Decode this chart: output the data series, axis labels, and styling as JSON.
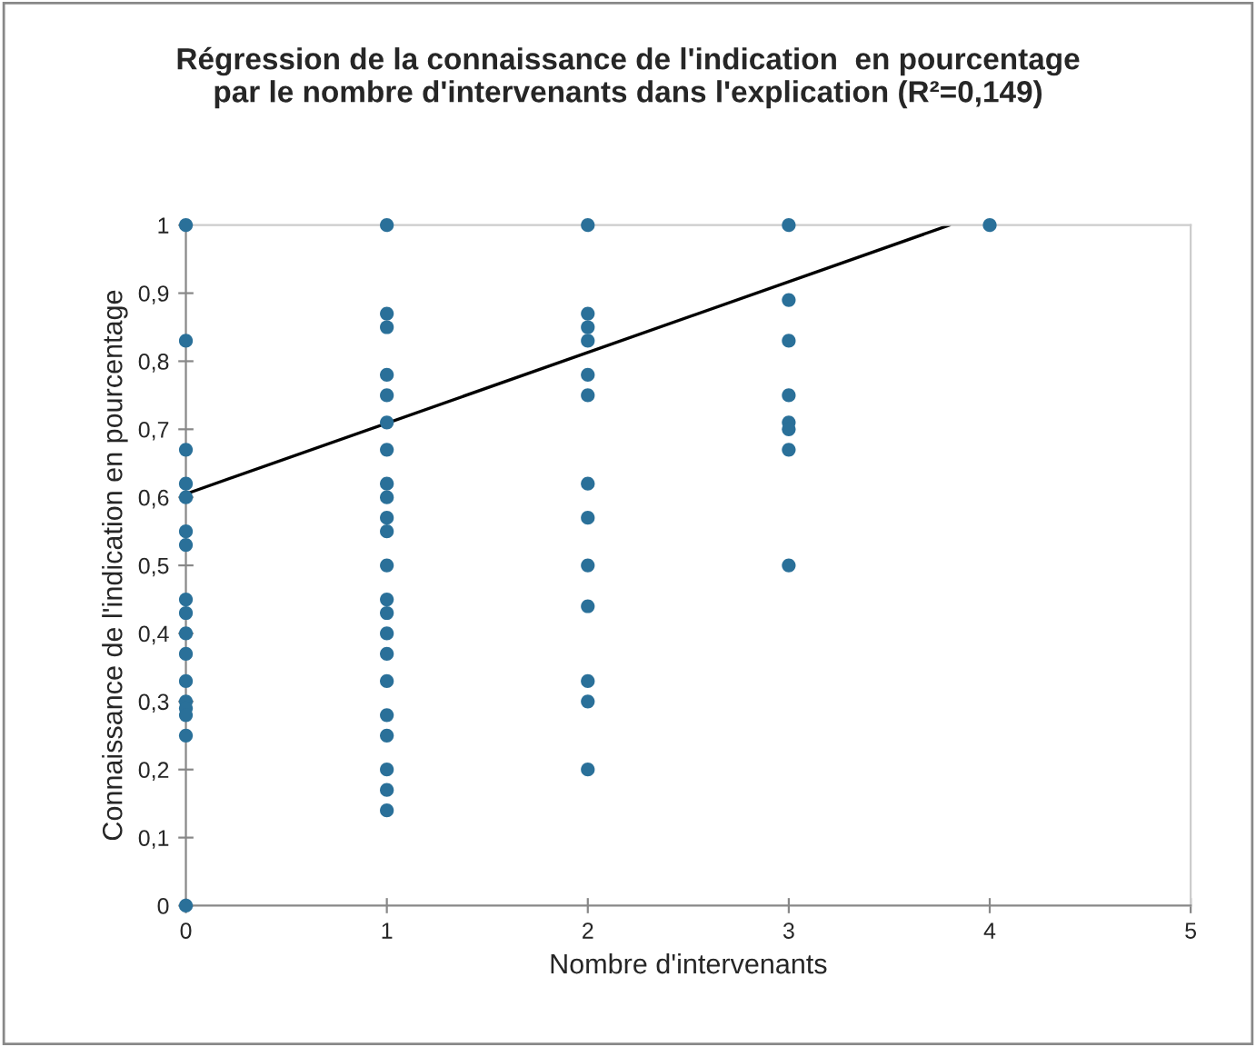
{
  "chart_data": {
    "type": "scatter",
    "title": "Régression de la connaissance de l'indication  en pourcentage par le nombre d'intervenants dans l'explication (R²=0,149)",
    "xlabel": "Nombre d'intervenants",
    "ylabel": "Connaissance de l'indication en pourcentage",
    "series": [
      {
        "color": "#2a7099",
        "marker": "circle",
        "x": [
          0,
          0,
          0,
          0,
          0,
          0,
          0,
          0,
          0,
          0,
          0,
          0,
          0,
          0,
          0,
          0,
          0,
          1,
          1,
          1,
          1,
          1,
          1,
          1,
          1,
          1,
          1,
          1,
          1,
          1,
          1,
          1,
          1,
          1,
          1,
          1,
          1,
          1,
          1,
          2,
          2,
          2,
          2,
          2,
          2,
          2,
          2,
          2,
          2,
          2,
          2,
          2,
          3,
          3,
          3,
          3,
          3,
          3,
          3,
          3,
          4
        ],
        "values": [
          1,
          0.83,
          0.67,
          0.62,
          0.6,
          0.55,
          0.53,
          0.45,
          0.43,
          0.4,
          0.37,
          0.33,
          0.3,
          0.29,
          0.28,
          0.25,
          0,
          1,
          0.87,
          0.85,
          0.78,
          0.75,
          0.71,
          0.67,
          0.62,
          0.6,
          0.57,
          0.55,
          0.5,
          0.45,
          0.43,
          0.4,
          0.37,
          0.33,
          0.28,
          0.25,
          0.2,
          0.17,
          0.14,
          1,
          0.87,
          0.85,
          0.83,
          0.78,
          0.75,
          0.62,
          0.57,
          0.5,
          0.44,
          0.33,
          0.3,
          0.2,
          1,
          0.89,
          0.83,
          0.75,
          0.71,
          0.7,
          0.67,
          0.5,
          1
        ]
      },
      {
        "type": "line",
        "color": "#000000",
        "marker": "none",
        "line_style": "solid",
        "x": [
          0,
          3.8
        ],
        "values": [
          0.605,
          1
        ]
      }
    ],
    "xlim": [
      0,
      5
    ],
    "xticks": [
      0,
      1,
      2,
      3,
      4,
      5
    ],
    "ylim": [
      0,
      1
    ],
    "yticks": [
      0,
      {
        "value": 0.1,
        "label": "0,1"
      },
      {
        "value": 0.2,
        "label": "0,2"
      },
      {
        "value": 0.3,
        "label": "0,3"
      },
      {
        "value": 0.4,
        "label": "0,4"
      },
      {
        "value": 0.5,
        "label": "0,5"
      },
      {
        "value": 0.6,
        "label": "0,6"
      },
      {
        "value": 0.7,
        "label": "0,7"
      },
      {
        "value": 0.8,
        "label": "0,8"
      },
      {
        "value": 0.9,
        "label": "0,9"
      },
      1
    ],
    "grid": false,
    "legend": false
  }
}
